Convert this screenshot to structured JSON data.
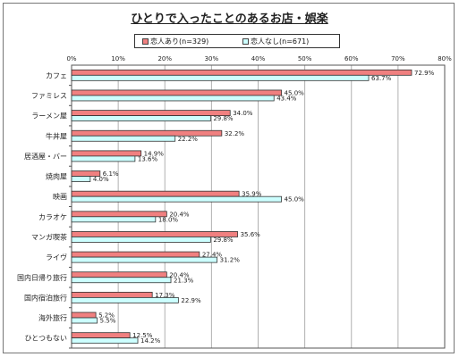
{
  "chart_data": {
    "type": "bar",
    "orientation": "horizontal",
    "title": "ひとりで入ったことのあるお店・娯楽",
    "xlabel": "",
    "ylabel": "",
    "xlim": [
      0,
      80
    ],
    "x_ticks": [
      "0%",
      "10%",
      "20%",
      "30%",
      "40%",
      "50%",
      "60%",
      "70%",
      "80%"
    ],
    "grid": true,
    "legend_position": "top-center",
    "categories": [
      "カフェ",
      "ファミレス",
      "ラーメン屋",
      "牛丼屋",
      "居酒屋・バー",
      "焼肉屋",
      "映画",
      "カラオケ",
      "マンガ喫茶",
      "ライヴ",
      "国内日帰り旅行",
      "国内宿泊旅行",
      "海外旅行",
      "ひとつもない"
    ],
    "series": [
      {
        "name": "恋人あり(n=329)",
        "color": "#f08080",
        "values": [
          72.9,
          45.0,
          34.0,
          32.2,
          14.9,
          6.1,
          35.9,
          20.4,
          35.6,
          27.4,
          20.4,
          17.3,
          5.2,
          12.5
        ],
        "labels": [
          "72.9%",
          "45.0%",
          "34.0%",
          "32.2%",
          "14.9%",
          "6.1%",
          "35.9%",
          "20.4%",
          "35.6%",
          "27.4%",
          "20.4%",
          "17.3%",
          "5.2%",
          "12.5%"
        ]
      },
      {
        "name": "恋人なし(n=671)",
        "color": "#ccffff",
        "values": [
          63.7,
          43.4,
          29.8,
          22.2,
          13.6,
          4.0,
          45.0,
          18.0,
          29.8,
          31.2,
          21.3,
          22.9,
          5.5,
          14.2
        ],
        "labels": [
          "63.7%",
          "43.4%",
          "29.8%",
          "22.2%",
          "13.6%",
          "4.0%",
          "45.0%",
          "18.0%",
          "29.8%",
          "31.2%",
          "21.3%",
          "22.9%",
          "5.5%",
          "14.2%"
        ]
      }
    ]
  }
}
